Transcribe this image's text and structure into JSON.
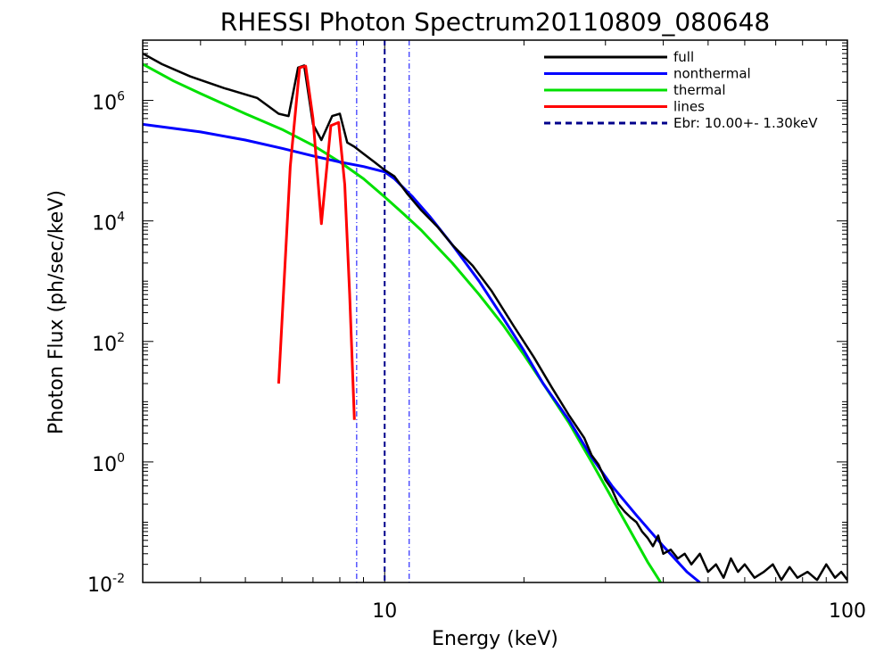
{
  "chart_data": {
    "type": "line",
    "title": "RHESSI Photon Spectrum20110809_080648",
    "xlabel": "Energy (keV)",
    "ylabel": "Photon Flux (ph/sec/keV)",
    "xscale": "log",
    "yscale": "log",
    "xlim": [
      3,
      100
    ],
    "ylim": [
      0.01,
      10000000
    ],
    "x_ticks": [
      {
        "value": 10,
        "label": "10"
      },
      {
        "value": 100,
        "label": "100"
      }
    ],
    "y_ticks": [
      {
        "value": 0.01,
        "base": "10",
        "exp": "-2"
      },
      {
        "value": 1,
        "base": "10",
        "exp": "0"
      },
      {
        "value": 100,
        "base": "10",
        "exp": "2"
      },
      {
        "value": 10000,
        "base": "10",
        "exp": "4"
      },
      {
        "value": 1000000,
        "base": "10",
        "exp": "6"
      }
    ],
    "legend_position": "top-right",
    "series": [
      {
        "name": "full",
        "color": "#000000",
        "x": [
          3,
          3.3,
          3.8,
          4.5,
          5.3,
          5.9,
          6.2,
          6.5,
          6.7,
          7.0,
          7.3,
          7.7,
          8.0,
          8.3,
          8.6,
          9.0,
          9.5,
          10.0,
          10.5,
          11.2,
          12.0,
          13.0,
          14.0,
          15.5,
          17.0,
          19.0,
          21.0,
          23.0,
          25.0,
          27.0,
          28.0,
          29.0,
          30.0,
          31.0,
          32.0,
          33.0,
          34.0,
          35.0,
          36.0,
          37.0,
          38.0,
          39.0,
          40.0,
          41.5,
          43.0,
          44.5,
          46.0,
          48.0,
          50.0,
          52.0,
          54.0,
          56.0,
          58.0,
          60.0,
          63.0,
          66.0,
          69.0,
          72.0,
          75.0,
          78.0,
          82.0,
          86.0,
          90.0,
          94.0,
          97.0,
          100.0
        ],
        "y": [
          6000000,
          4000000,
          2500000,
          1600000,
          1100000,
          600000,
          550000,
          3500000,
          3800000,
          400000,
          220000,
          550000,
          600000,
          200000,
          170000,
          130000,
          95000,
          70000,
          55000,
          28000,
          15000,
          8000,
          4000,
          1800,
          700,
          180,
          55,
          17,
          6,
          2.5,
          1.3,
          0.9,
          0.5,
          0.35,
          0.2,
          0.15,
          0.12,
          0.1,
          0.07,
          0.055,
          0.04,
          0.06,
          0.03,
          0.035,
          0.025,
          0.03,
          0.02,
          0.03,
          0.015,
          0.02,
          0.012,
          0.025,
          0.015,
          0.02,
          0.012,
          0.015,
          0.02,
          0.011,
          0.018,
          0.012,
          0.015,
          0.011,
          0.02,
          0.012,
          0.015,
          0.011
        ]
      },
      {
        "name": "nonthermal",
        "color": "#0000ff",
        "x": [
          3,
          4,
          5,
          6,
          7,
          8,
          9,
          10,
          10.5,
          11.5,
          12.5,
          14,
          16,
          18,
          20,
          22,
          25,
          28,
          31,
          35,
          40,
          45,
          48
        ],
        "y": [
          400000,
          300000,
          220000,
          160000,
          120000,
          95000,
          80000,
          65000,
          50000,
          25000,
          12000,
          4000,
          1000,
          250,
          70,
          20,
          5,
          1.2,
          0.4,
          0.13,
          0.04,
          0.015,
          0.01
        ]
      },
      {
        "name": "thermal",
        "color": "#00e000",
        "x": [
          3,
          3.5,
          4,
          5,
          6,
          7,
          8,
          9,
          10,
          11,
          12,
          14,
          16,
          18,
          20,
          22,
          25,
          28,
          31,
          34,
          37,
          39.5
        ],
        "y": [
          4000000,
          2100000,
          1300000,
          600000,
          330000,
          180000,
          95000,
          50000,
          25000,
          13000,
          7000,
          2000,
          600,
          190,
          60,
          20,
          4.5,
          1,
          0.25,
          0.07,
          0.022,
          0.01
        ]
      },
      {
        "name": "lines",
        "color": "#ff0000",
        "x": [
          5.9,
          6.25,
          6.55,
          6.75,
          7.0,
          7.3,
          7.65,
          7.95,
          8.2,
          8.4,
          8.6
        ],
        "y": [
          20,
          80000,
          3500000,
          3700000,
          500000,
          9000,
          380000,
          430000,
          40000,
          600,
          5
        ]
      }
    ],
    "reference_lines": [
      {
        "x": 10.0,
        "style": "dashed",
        "color": "#00008b",
        "legend": "Ebr:  10.00+-  1.30keV"
      },
      {
        "x": 8.7,
        "style": "dash-dot",
        "color": "#0000ff"
      },
      {
        "x": 11.3,
        "style": "dash-dot",
        "color": "#0000ff"
      }
    ]
  }
}
